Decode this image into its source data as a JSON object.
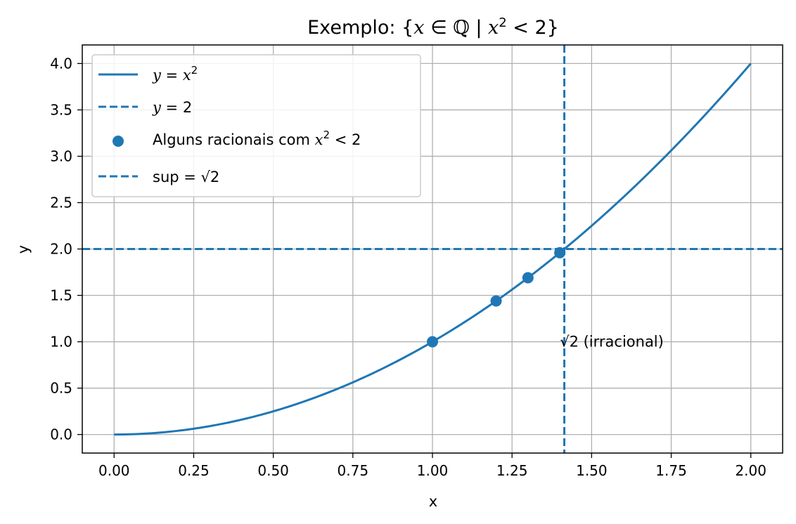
{
  "chart_data": {
    "type": "line",
    "title_prefix": "Exemplo:",
    "xlabel": "x",
    "ylabel": "y",
    "xlim": [
      -0.1,
      2.1
    ],
    "ylim": [
      -0.2,
      4.2
    ],
    "xticks": [
      "0.00",
      "0.25",
      "0.50",
      "0.75",
      "1.00",
      "1.25",
      "1.50",
      "1.75",
      "2.00"
    ],
    "yticks": [
      "0.0",
      "0.5",
      "1.0",
      "1.5",
      "2.0",
      "2.5",
      "3.0",
      "3.5",
      "4.0"
    ],
    "grid": true,
    "legend_position": "top-left",
    "curve": {
      "function": "y = x^2",
      "x_range": [
        0,
        2
      ]
    },
    "hline": {
      "y": 2
    },
    "vline": {
      "x": 1.41421356
    },
    "points": [
      {
        "x": 1.0,
        "y": 1.0
      },
      {
        "x": 1.2,
        "y": 1.44
      },
      {
        "x": 1.3,
        "y": 1.69
      },
      {
        "x": 1.4,
        "y": 1.96
      }
    ],
    "annotation": {
      "x": 1.44,
      "y": 1.0,
      "text": "(irracional)"
    },
    "legend": {
      "scatter_label_prefix": "Alguns racionais com",
      "sup_label_prefix": "sup"
    },
    "colors": {
      "series": "#1f77b4",
      "grid": "#b0b0b0",
      "axes": "#000000"
    }
  }
}
